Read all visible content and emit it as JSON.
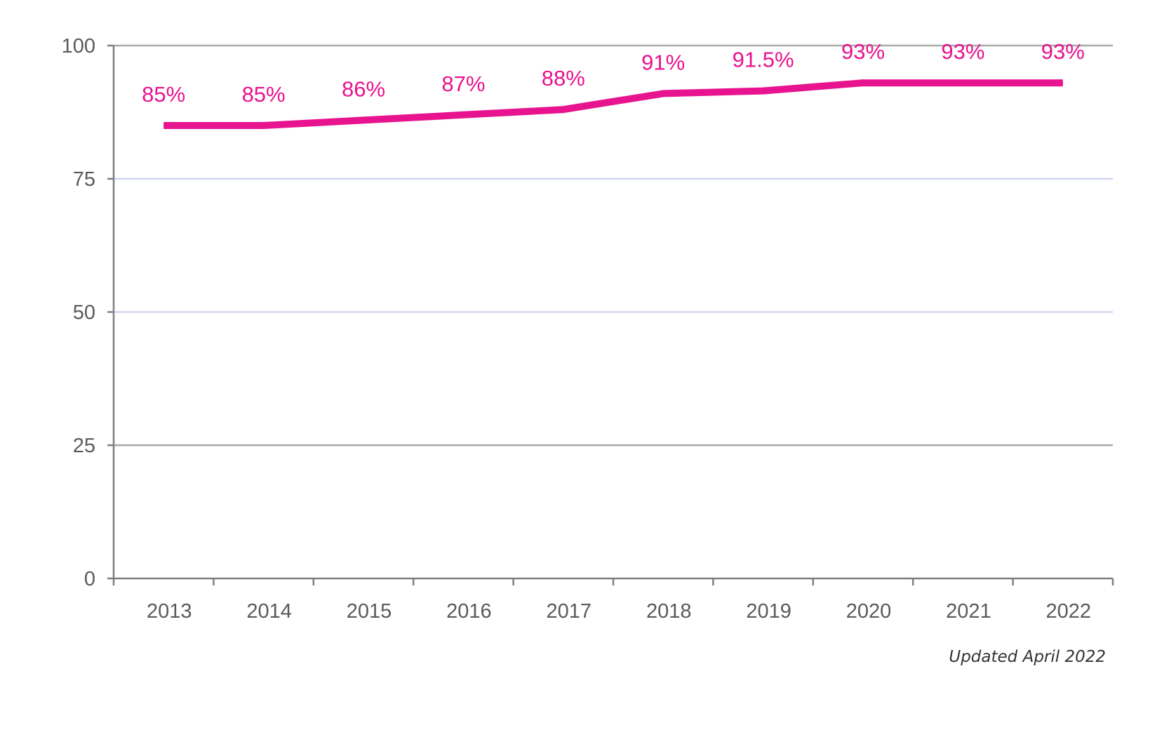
{
  "chart_data": {
    "type": "line",
    "title": "",
    "xlabel": "",
    "ylabel": "",
    "ylim": [
      0,
      100
    ],
    "yticks": [
      "0",
      "25",
      "50",
      "75",
      "100"
    ],
    "categories": [
      "2013",
      "2014",
      "2015",
      "2016",
      "2017",
      "2018",
      "2019",
      "2020",
      "2021",
      "2022"
    ],
    "series": [
      {
        "values": [
          85,
          85,
          86,
          87,
          88,
          91,
          91.5,
          93,
          93,
          93
        ],
        "data_labels": [
          "85%",
          "85%",
          "86%",
          "87%",
          "88%",
          "91%",
          "91.5%",
          "93%",
          "93%",
          "93%"
        ],
        "color": "#e8138f"
      }
    ],
    "grid": true,
    "legend": "none"
  },
  "footnote": "Updated April 2022",
  "colors": {
    "line": "#e8138f",
    "axis": "#7f7f7f",
    "grid_light": "#cfd6f0",
    "grid_dark": "#a6aca6",
    "tick_text": "#5a5a5a"
  }
}
